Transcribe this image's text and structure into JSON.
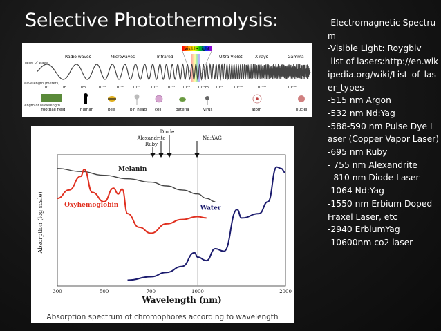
{
  "slide": {
    "title": "Selective Photothermolysis:",
    "notes": [
      "-Electromagnetic Spectrum",
      "-Visible Light: Roygbiv",
      "-list of lasers:http://en.wikipedia.org/wiki/List_of_laser_types",
      "-515 nm Argon",
      "-532 nm Nd:Yag",
      "-588-590 nm Pulse Dye Laser (Copper Vapor Laser)",
      "-695 nm Ruby",
      "- 755 nm Alexandrite",
      "- 810 nm Diode Laser",
      "-1064 Nd:Yag",
      "-1550 nm Erbium Doped Fraxel Laser, etc",
      "-2940 ErbiumYag",
      "-10600nm co2 laser"
    ]
  },
  "spectrum": {
    "visible_label": "Visible Light",
    "bands": [
      "Radio waves",
      "Microwaves",
      "Infrared",
      "Ultra Violet",
      "X-rays",
      "Gamma"
    ],
    "row_labels": [
      "name of wave",
      "wavelength (meters)",
      "length of wavelength"
    ],
    "ticks": [
      "10¹",
      "1m",
      "1m",
      "10⁻¹",
      "10⁻²",
      "10⁻³",
      "10⁻⁴",
      "10⁻⁵",
      "10⁻⁶",
      "10⁻⁸m",
      "10⁻⁹",
      "10⁻¹⁰",
      "10⁻¹¹",
      "10⁻¹²"
    ],
    "objects": [
      "football field",
      "human",
      "bee",
      "pin head",
      "cell",
      "bateria",
      "virus",
      "atom",
      "nuclei"
    ]
  },
  "chart_data": {
    "type": "line",
    "title": "",
    "xlabel": "Wavelength (nm)",
    "ylabel": "Absorption (log scale)",
    "xlim": [
      300,
      2000
    ],
    "x_ticks": [
      300,
      500,
      700,
      1000,
      2000
    ],
    "y_scale": "log",
    "annotations": [
      "Diode",
      "Alexandrite",
      "Ruby",
      "Nd:YAG"
    ],
    "series": [
      {
        "name": "Melanin",
        "color": "#444444",
        "x": [
          300,
          400,
          500,
          600,
          700,
          800,
          900,
          1000,
          1100,
          1200
        ],
        "y": [
          100,
          70,
          45,
          30,
          20,
          13,
          8,
          5,
          3,
          2
        ]
      },
      {
        "name": "Oxyhemoglobin",
        "color": "#e03020",
        "x": [
          300,
          350,
          400,
          415,
          450,
          500,
          540,
          560,
          577,
          600,
          650,
          700,
          800,
          900,
          1000,
          1100
        ],
        "y": [
          3,
          8,
          40,
          90,
          6,
          2,
          10,
          5,
          9,
          0.5,
          0.1,
          0.05,
          0.15,
          0.25,
          0.35,
          0.3
        ]
      },
      {
        "name": "Water",
        "color": "#1c1c6e",
        "x": [
          600,
          700,
          800,
          900,
          980,
          1000,
          1100,
          1200,
          1300,
          1450,
          1500,
          1700,
          1800,
          1900,
          1950,
          2000
        ],
        "y": [
          0.0002,
          0.0003,
          0.0005,
          0.001,
          0.005,
          0.003,
          0.002,
          0.008,
          0.006,
          0.8,
          0.3,
          0.5,
          2,
          120,
          100,
          60
        ]
      }
    ]
  },
  "caption": "Absorption spectrum of chromophores according to wavelength"
}
